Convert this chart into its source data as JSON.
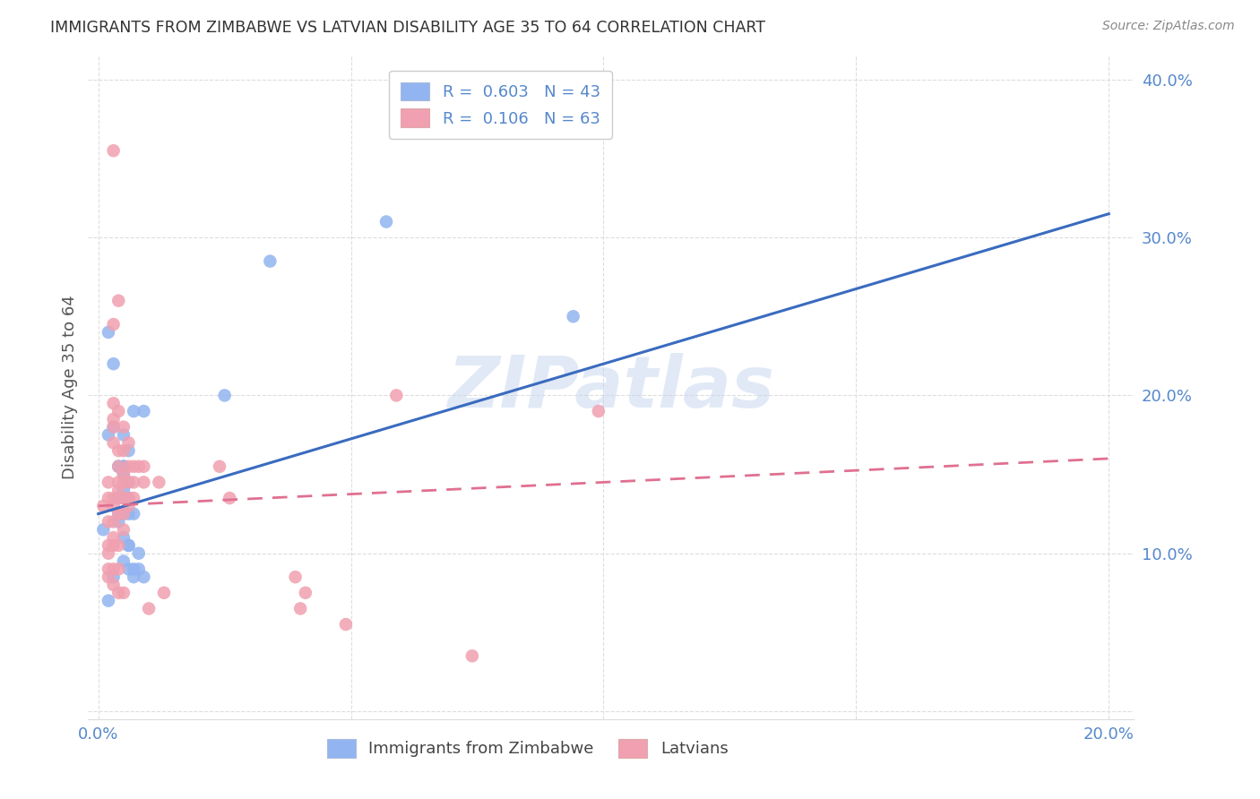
{
  "title": "IMMIGRANTS FROM ZIMBABWE VS LATVIAN DISABILITY AGE 35 TO 64 CORRELATION CHART",
  "source": "Source: ZipAtlas.com",
  "ylabel_label": "Disability Age 35 to 64",
  "xlim": [
    -0.002,
    0.205
  ],
  "ylim": [
    -0.005,
    0.415
  ],
  "xticks": [
    0.0,
    0.05,
    0.1,
    0.15,
    0.2
  ],
  "yticks": [
    0.0,
    0.1,
    0.2,
    0.3,
    0.4
  ],
  "xtick_labels": [
    "0.0%",
    "",
    "",
    "",
    "20.0%"
  ],
  "ytick_labels": [
    "",
    "10.0%",
    "20.0%",
    "30.0%",
    "40.0%"
  ],
  "legend_blue_text": "R =  0.603   N = 43",
  "legend_pink_text": "R =  0.106   N = 63",
  "legend_label_blue": "Immigrants from Zimbabwe",
  "legend_label_pink": "Latvians",
  "watermark": "ZIPatlas",
  "blue_color": "#92b4f0",
  "pink_color": "#f0a0b0",
  "blue_line_color": "#3a6bbf",
  "pink_line_color": "#e07090",
  "axis_color": "#5588cc",
  "grid_color": "#dddddd",
  "blue_scatter": [
    [
      0.001,
      0.115
    ],
    [
      0.002,
      0.175
    ],
    [
      0.003,
      0.18
    ],
    [
      0.003,
      0.22
    ],
    [
      0.004,
      0.155
    ],
    [
      0.004,
      0.135
    ],
    [
      0.004,
      0.155
    ],
    [
      0.004,
      0.125
    ],
    [
      0.004,
      0.12
    ],
    [
      0.005,
      0.155
    ],
    [
      0.005,
      0.14
    ],
    [
      0.005,
      0.155
    ],
    [
      0.005,
      0.135
    ],
    [
      0.005,
      0.175
    ],
    [
      0.005,
      0.155
    ],
    [
      0.005,
      0.15
    ],
    [
      0.005,
      0.135
    ],
    [
      0.005,
      0.125
    ],
    [
      0.005,
      0.11
    ],
    [
      0.005,
      0.095
    ],
    [
      0.006,
      0.165
    ],
    [
      0.006,
      0.145
    ],
    [
      0.006,
      0.135
    ],
    [
      0.006,
      0.105
    ],
    [
      0.006,
      0.09
    ],
    [
      0.006,
      0.135
    ],
    [
      0.006,
      0.125
    ],
    [
      0.006,
      0.105
    ],
    [
      0.007,
      0.19
    ],
    [
      0.007,
      0.125
    ],
    [
      0.007,
      0.09
    ],
    [
      0.007,
      0.085
    ],
    [
      0.008,
      0.1
    ],
    [
      0.008,
      0.09
    ],
    [
      0.009,
      0.19
    ],
    [
      0.009,
      0.085
    ],
    [
      0.002,
      0.24
    ],
    [
      0.025,
      0.2
    ],
    [
      0.034,
      0.285
    ],
    [
      0.057,
      0.31
    ],
    [
      0.094,
      0.25
    ],
    [
      0.002,
      0.07
    ],
    [
      0.003,
      0.085
    ]
  ],
  "pink_scatter": [
    [
      0.001,
      0.13
    ],
    [
      0.002,
      0.145
    ],
    [
      0.002,
      0.135
    ],
    [
      0.002,
      0.12
    ],
    [
      0.002,
      0.105
    ],
    [
      0.002,
      0.1
    ],
    [
      0.002,
      0.09
    ],
    [
      0.002,
      0.085
    ],
    [
      0.003,
      0.355
    ],
    [
      0.003,
      0.195
    ],
    [
      0.003,
      0.18
    ],
    [
      0.003,
      0.17
    ],
    [
      0.003,
      0.245
    ],
    [
      0.003,
      0.185
    ],
    [
      0.003,
      0.135
    ],
    [
      0.003,
      0.13
    ],
    [
      0.003,
      0.12
    ],
    [
      0.003,
      0.11
    ],
    [
      0.003,
      0.105
    ],
    [
      0.003,
      0.09
    ],
    [
      0.003,
      0.08
    ],
    [
      0.004,
      0.26
    ],
    [
      0.004,
      0.19
    ],
    [
      0.004,
      0.165
    ],
    [
      0.004,
      0.155
    ],
    [
      0.004,
      0.145
    ],
    [
      0.004,
      0.14
    ],
    [
      0.004,
      0.135
    ],
    [
      0.004,
      0.125
    ],
    [
      0.004,
      0.105
    ],
    [
      0.004,
      0.09
    ],
    [
      0.004,
      0.075
    ],
    [
      0.005,
      0.18
    ],
    [
      0.005,
      0.165
    ],
    [
      0.005,
      0.145
    ],
    [
      0.005,
      0.135
    ],
    [
      0.005,
      0.125
    ],
    [
      0.005,
      0.115
    ],
    [
      0.005,
      0.075
    ],
    [
      0.005,
      0.15
    ],
    [
      0.006,
      0.17
    ],
    [
      0.006,
      0.155
    ],
    [
      0.006,
      0.145
    ],
    [
      0.006,
      0.135
    ],
    [
      0.006,
      0.13
    ],
    [
      0.007,
      0.155
    ],
    [
      0.007,
      0.145
    ],
    [
      0.007,
      0.135
    ],
    [
      0.008,
      0.155
    ],
    [
      0.009,
      0.155
    ],
    [
      0.009,
      0.145
    ],
    [
      0.01,
      0.065
    ],
    [
      0.012,
      0.145
    ],
    [
      0.013,
      0.075
    ],
    [
      0.024,
      0.155
    ],
    [
      0.026,
      0.135
    ],
    [
      0.039,
      0.085
    ],
    [
      0.041,
      0.075
    ],
    [
      0.04,
      0.065
    ],
    [
      0.059,
      0.2
    ],
    [
      0.099,
      0.19
    ],
    [
      0.074,
      0.035
    ],
    [
      0.049,
      0.055
    ]
  ],
  "blue_line": [
    [
      0.0,
      0.125
    ],
    [
      0.2,
      0.315
    ]
  ],
  "pink_line": [
    [
      0.0,
      0.13
    ],
    [
      0.2,
      0.16
    ]
  ],
  "figsize": [
    14.06,
    8.92
  ],
  "dpi": 100
}
